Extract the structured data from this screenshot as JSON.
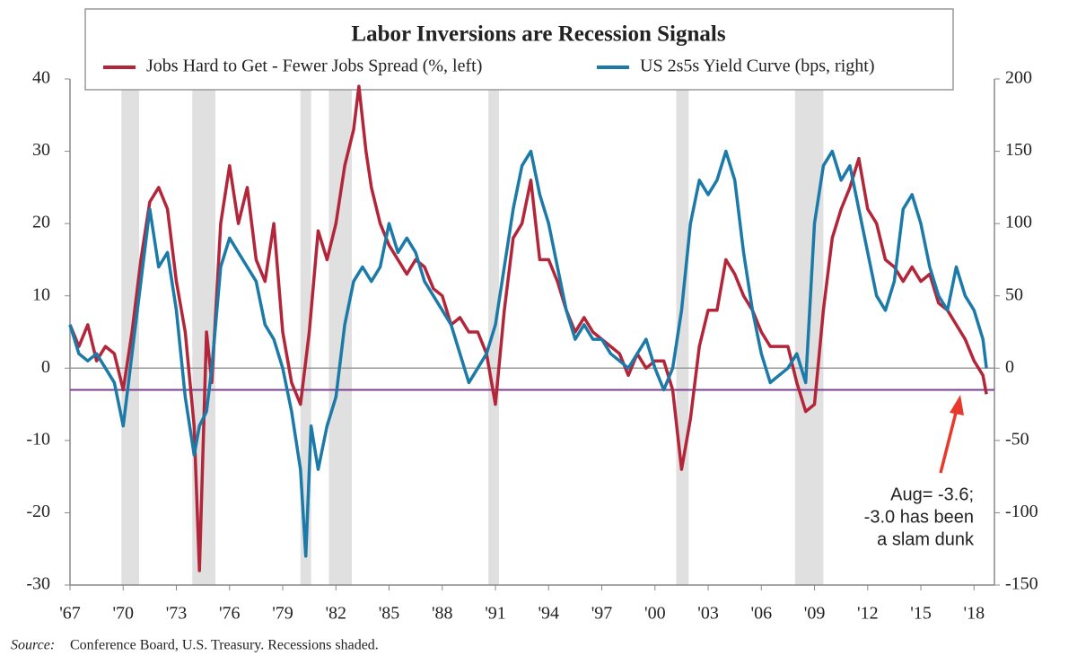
{
  "chart_data": {
    "type": "line",
    "title": "Labor Inversions are Recession Signals",
    "source_label": "Source:",
    "source": "Conference Board, U.S. Treasury. Recessions shaded.",
    "annotation": [
      "Aug= -3.6;",
      "-3.0 has been",
      "a slam dunk"
    ],
    "threshold": -3.0,
    "threshold_color": "#7b3f8f",
    "recession_color": "#e0e0e0",
    "recessions": [
      [
        1969.9,
        1970.9
      ],
      [
        1973.9,
        1975.2
      ],
      [
        1980.0,
        1980.6
      ],
      [
        1981.6,
        1982.9
      ],
      [
        1990.6,
        1991.2
      ],
      [
        2001.2,
        2001.9
      ],
      [
        2007.9,
        2009.5
      ]
    ],
    "xlim": [
      1967,
      2019.15
    ],
    "xticks": [
      {
        "value": 1967,
        "label": "'67"
      },
      {
        "value": 1970,
        "label": "'70"
      },
      {
        "value": 1973,
        "label": "'73"
      },
      {
        "value": 1976,
        "label": "'76"
      },
      {
        "value": 1979,
        "label": "'79"
      },
      {
        "value": 1982,
        "label": "'82"
      },
      {
        "value": 1985,
        "label": "'85"
      },
      {
        "value": 1988,
        "label": "'88"
      },
      {
        "value": 1991,
        "label": "'91"
      },
      {
        "value": 1994,
        "label": "'94"
      },
      {
        "value": 1997,
        "label": "'97"
      },
      {
        "value": 2000,
        "label": "'00"
      },
      {
        "value": 2003,
        "label": "'03"
      },
      {
        "value": 2006,
        "label": "'06"
      },
      {
        "value": 2009,
        "label": "'09"
      },
      {
        "value": 2012,
        "label": "'12"
      },
      {
        "value": 2015,
        "label": "'15"
      },
      {
        "value": 2018,
        "label": "'18"
      }
    ],
    "ylim": [
      -30,
      40
    ],
    "yticks": [
      -30,
      -20,
      -10,
      0,
      10,
      20,
      30,
      40
    ],
    "y2lim": [
      -150,
      200
    ],
    "y2ticks": [
      -150,
      -100,
      -50,
      0,
      50,
      100,
      150,
      200
    ],
    "series": [
      {
        "name": "Jobs Hard to Get - Fewer Jobs Spread (%, left)",
        "color": "#b3263a",
        "axis": "y",
        "x": [
          1967,
          1967.5,
          1968,
          1968.5,
          1969,
          1969.5,
          1970,
          1970.5,
          1971,
          1971.5,
          1972,
          1972.5,
          1973,
          1973.5,
          1974,
          1974.3,
          1974.7,
          1975,
          1975.5,
          1976,
          1976.5,
          1977,
          1977.5,
          1978,
          1978.5,
          1979,
          1979.5,
          1980,
          1980.5,
          1981,
          1981.5,
          1982,
          1982.5,
          1983,
          1983.3,
          1983.7,
          1984,
          1984.5,
          1985,
          1985.5,
          1986,
          1986.5,
          1987,
          1987.5,
          1988,
          1988.5,
          1989,
          1989.5,
          1990,
          1990.5,
          1991,
          1991.5,
          1992,
          1992.5,
          1993,
          1993.5,
          1994,
          1994.5,
          1995,
          1995.5,
          1996,
          1996.5,
          1997,
          1997.5,
          1998,
          1998.5,
          1999,
          1999.5,
          2000,
          2000.5,
          2001,
          2001.5,
          2002,
          2002.5,
          2003,
          2003.5,
          2004,
          2004.5,
          2005,
          2005.5,
          2006,
          2006.5,
          2007,
          2007.5,
          2008,
          2008.5,
          2009,
          2009.5,
          2010,
          2010.5,
          2011,
          2011.5,
          2012,
          2012.5,
          2013,
          2013.5,
          2014,
          2014.5,
          2015,
          2015.5,
          2016,
          2016.5,
          2017,
          2017.5,
          2018,
          2018.5,
          2018.7
        ],
        "values": [
          6,
          3,
          6,
          1,
          3,
          2,
          -3,
          5,
          15,
          23,
          25,
          22,
          12,
          5,
          -8,
          -28,
          5,
          -2,
          20,
          28,
          20,
          25,
          15,
          12,
          20,
          5,
          -2,
          -5,
          5,
          19,
          15,
          20,
          28,
          33,
          39,
          30,
          25,
          20,
          17,
          15,
          13,
          15,
          14,
          11,
          10,
          6,
          7,
          5,
          5,
          2,
          -5,
          8,
          18,
          20,
          26,
          15,
          15,
          12,
          8,
          5,
          7,
          5,
          4,
          3,
          2,
          -1,
          2,
          0,
          1,
          1,
          -3,
          -14,
          -7,
          3,
          8,
          8,
          15,
          13,
          10,
          8,
          5,
          3,
          3,
          3,
          -2,
          -6,
          -5,
          8,
          18,
          22,
          25,
          29,
          22,
          20,
          15,
          14,
          12,
          14,
          12,
          13,
          9,
          8,
          6,
          4,
          1,
          -1,
          -3.6
        ]
      },
      {
        "name": "US 2s5s Yield Curve (bps, right)",
        "color": "#1b7aa8",
        "axis": "y2",
        "x": [
          1967,
          1967.5,
          1968,
          1968.5,
          1969,
          1969.5,
          1970,
          1970.5,
          1971,
          1971.5,
          1972,
          1972.5,
          1973,
          1973.5,
          1974,
          1974.3,
          1974.7,
          1975,
          1975.5,
          1976,
          1976.5,
          1977,
          1977.5,
          1978,
          1978.5,
          1979,
          1979.5,
          1980,
          1980.3,
          1980.6,
          1981,
          1981.5,
          1982,
          1982.5,
          1983,
          1983.5,
          1984,
          1984.5,
          1985,
          1985.5,
          1986,
          1986.5,
          1987,
          1987.5,
          1988,
          1988.5,
          1989,
          1989.5,
          1990,
          1990.5,
          1991,
          1991.5,
          1992,
          1992.5,
          1993,
          1993.5,
          1994,
          1994.5,
          1995,
          1995.5,
          1996,
          1996.5,
          1997,
          1997.5,
          1998,
          1998.5,
          1999,
          1999.5,
          2000,
          2000.5,
          2001,
          2001.5,
          2002,
          2002.5,
          2003,
          2003.5,
          2004,
          2004.5,
          2005,
          2005.5,
          2006,
          2006.5,
          2007,
          2007.5,
          2008,
          2008.5,
          2009,
          2009.5,
          2010,
          2010.5,
          2011,
          2011.5,
          2012,
          2012.5,
          2013,
          2013.5,
          2014,
          2014.5,
          2015,
          2015.5,
          2016,
          2016.5,
          2017,
          2017.5,
          2018,
          2018.5,
          2018.7
        ],
        "values": [
          30,
          10,
          5,
          10,
          0,
          -10,
          -40,
          10,
          60,
          110,
          70,
          80,
          40,
          -20,
          -60,
          -40,
          -30,
          0,
          70,
          90,
          80,
          70,
          60,
          30,
          20,
          0,
          -30,
          -70,
          -130,
          -40,
          -70,
          -40,
          -20,
          30,
          60,
          70,
          60,
          70,
          100,
          80,
          90,
          80,
          60,
          50,
          40,
          30,
          10,
          -10,
          0,
          10,
          30,
          70,
          110,
          140,
          150,
          120,
          100,
          70,
          40,
          20,
          30,
          20,
          20,
          10,
          5,
          0,
          10,
          20,
          0,
          -15,
          0,
          40,
          100,
          130,
          120,
          130,
          150,
          130,
          80,
          40,
          10,
          -10,
          -5,
          0,
          10,
          -10,
          100,
          140,
          150,
          130,
          140,
          110,
          80,
          50,
          40,
          60,
          110,
          120,
          100,
          70,
          50,
          40,
          70,
          50,
          40,
          20,
          0
        ]
      }
    ]
  }
}
